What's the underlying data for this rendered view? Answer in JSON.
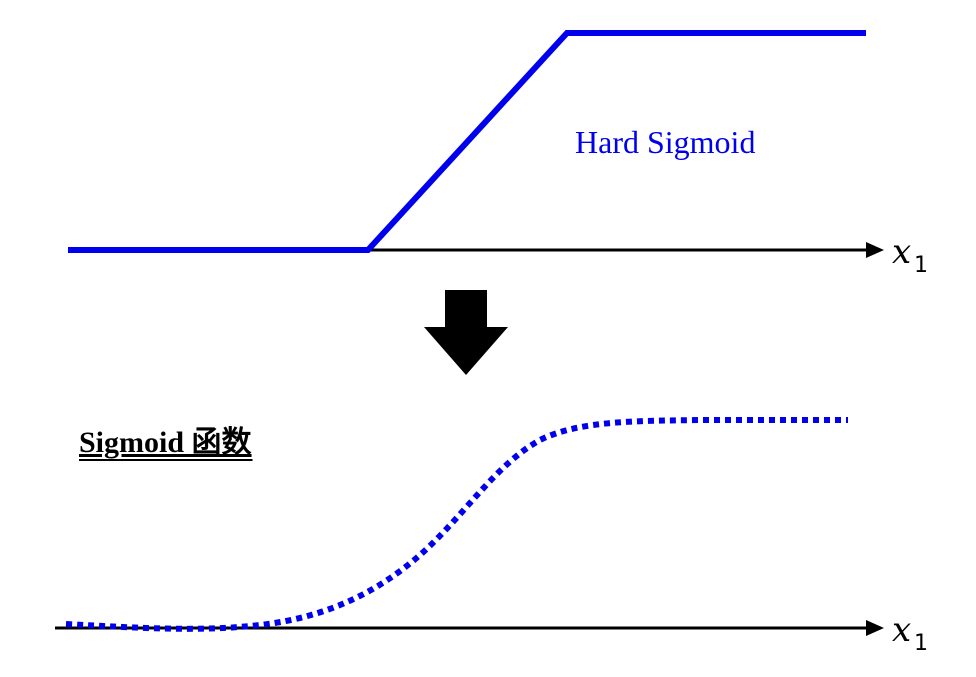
{
  "top_panel": {
    "curve_label": "Hard Sigmoid",
    "axis_label": "x",
    "axis_subscript": "1"
  },
  "bottom_panel": {
    "title": "Sigmoid 函数",
    "axis_label": "x",
    "axis_subscript": "1"
  },
  "colors": {
    "curve": "#0000ee",
    "axis": "#000000",
    "arrow": "#000000"
  }
}
